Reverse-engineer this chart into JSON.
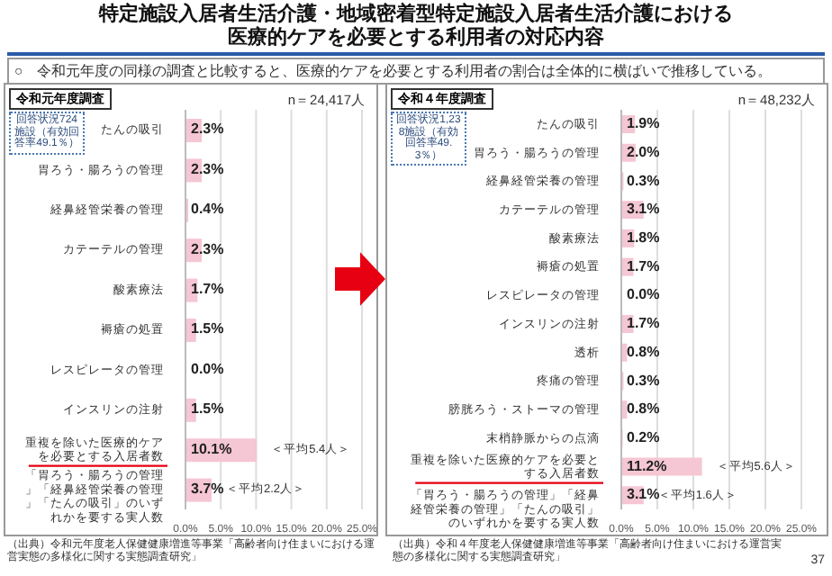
{
  "chart_data": [
    {
      "type": "bar",
      "orientation": "horizontal",
      "title": "特定施設入居者生活介護・地域密着型特定施設入居者生活介護における医療的ケアを必要とする利用者の対応内容",
      "subtitle": "○　令和元年度の同様の調査と比較すると、医療的ケアを必要とする利用者の割合は全体的に横ばいで推移している。",
      "categories": [
        "たんの吸引",
        "胃ろう・腸ろうの管理",
        "経鼻経管栄養の管理",
        "カテーテルの管理",
        "酸素療法",
        "褥瘡の処置",
        "レスピレータの管理",
        "インスリンの注射",
        "重複を除いた医療的ケアを必要とする入居者数",
        "「胃ろう・腸ろうの管理」「経鼻経管栄養の管理」「たんの吸引」のいずれかを要する実人数"
      ],
      "values": [
        2.3,
        2.3,
        0.4,
        2.3,
        1.7,
        1.5,
        0.0,
        1.5,
        10.1,
        3.7
      ],
      "value_labels": [
        "2.3%",
        "2.3%",
        "0.4%",
        "2.3%",
        "1.7%",
        "1.5%",
        "0.0%",
        "1.5%",
        "10.1%",
        "3.7%"
      ],
      "color": "#f5c6d3",
      "xlim": [
        0,
        25
      ],
      "xticks": [
        {
          "value": 0,
          "label": "0.0%"
        },
        {
          "value": 5,
          "label": "5.0%"
        },
        {
          "value": 10,
          "label": "10.0%"
        },
        {
          "value": 15,
          "label": "15.0%"
        },
        {
          "value": 20,
          "label": "20.0%"
        },
        {
          "value": 25,
          "label": "25.0%"
        }
      ],
      "grid": "x",
      "annotations": [
        "令和元年度調査",
        "n＝24,417人",
        "回答状況724施設（有効回答率49.1％）",
        "（出典）令和元年度老人保健健康増進等事業「高齢者向け住まいにおける運営実態の多様化に関する実態調査研究」",
        {
          "text": "＜平均5.4人＞",
          "x": 10.1,
          "y": "重複を除いた医療的ケアを必要とする入居者数"
        },
        {
          "text": "＜平均2.2人＞",
          "x": 3.7,
          "y": "「胃ろう・腸ろうの管理」「経鼻経管栄養の管理」「たんの吸引」のいずれかを要する実人数"
        }
      ]
    },
    {
      "type": "bar",
      "orientation": "horizontal",
      "categories": [
        "たんの吸引",
        "胃ろう・腸ろうの管理",
        "経鼻経管栄養の管理",
        "カテーテルの管理",
        "酸素療法",
        "褥瘡の処置",
        "レスピレータの管理",
        "インスリンの注射",
        "透析",
        "疼痛の管理",
        "膀胱ろう・ストーマの管理",
        "末梢静脈からの点滴",
        "重複を除いた医療的ケアを必要とする入居者数",
        "「胃ろう・腸ろうの管理」「経鼻経管栄養の管理」「たんの吸引」のいずれかを要する実人数"
      ],
      "values": [
        1.9,
        2.0,
        0.3,
        3.1,
        1.8,
        1.7,
        0.0,
        1.7,
        0.8,
        0.3,
        0.8,
        0.2,
        11.2,
        3.1
      ],
      "value_labels": [
        "1.9%",
        "2.0%",
        "0.3%",
        "3.1%",
        "1.8%",
        "1.7%",
        "0.0%",
        "1.7%",
        "0.8%",
        "0.3%",
        "0.8%",
        "0.2%",
        "11.2%",
        "3.1%"
      ],
      "color": "#f5c6d3",
      "xlim": [
        0,
        25
      ],
      "xticks": [
        {
          "value": 0,
          "label": "0.0%"
        },
        {
          "value": 5,
          "label": "5.0%"
        },
        {
          "value": 10,
          "label": "10.0%"
        },
        {
          "value": 15,
          "label": "15.0%"
        },
        {
          "value": 20,
          "label": "20.0%"
        },
        {
          "value": 25,
          "label": "25.0%"
        }
      ],
      "grid": "x",
      "annotations": [
        "令和４年度調査",
        "n＝48,232人",
        "回答状況1,238施設（有効回答率49.3％）",
        "（出典）令和４年度老人保健健康増進等事業「高齢者向け住まいにおける運営実態の多様化に関する実態調査研究」",
        "37",
        {
          "text": "＜平均5.6人＞",
          "x": 11.2,
          "y": "重複を除いた医療的ケアを必要とする入居者数"
        },
        {
          "text": "＜平均1.6人＞",
          "x": 3.1,
          "y": "「胃ろう・腸ろうの管理」「経鼻経管栄養の管理」「たんの吸引」のいずれかを要する実人数"
        }
      ]
    }
  ]
}
